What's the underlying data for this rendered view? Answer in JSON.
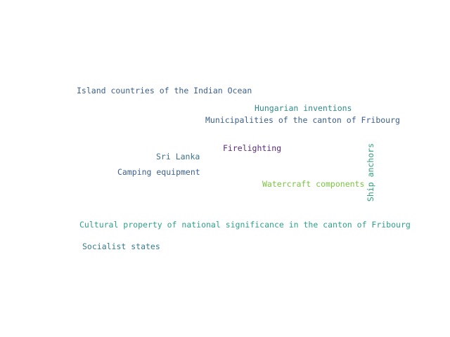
{
  "words": [
    {
      "text": "Island countries of the Indian Ocean",
      "color": "#3b5f8c"
    },
    {
      "text": "Hungarian inventions",
      "color": "#2f8a8a"
    },
    {
      "text": "Municipalities of the canton of Fribourg",
      "color": "#3b5f8c"
    },
    {
      "text": "Firelighting",
      "color": "#5a2a7a"
    },
    {
      "text": "Sri Lanka",
      "color": "#3b6f8a"
    },
    {
      "text": "Camping equipment",
      "color": "#3b5f8c"
    },
    {
      "text": "Watercraft components",
      "color": "#7ac442"
    },
    {
      "text": "Ship anchors",
      "color": "#2fa07a"
    },
    {
      "text": "Cultural property of national significance in the canton of Fribourg",
      "color": "#2fa08a"
    },
    {
      "text": "Socialist states",
      "color": "#357a90"
    }
  ]
}
